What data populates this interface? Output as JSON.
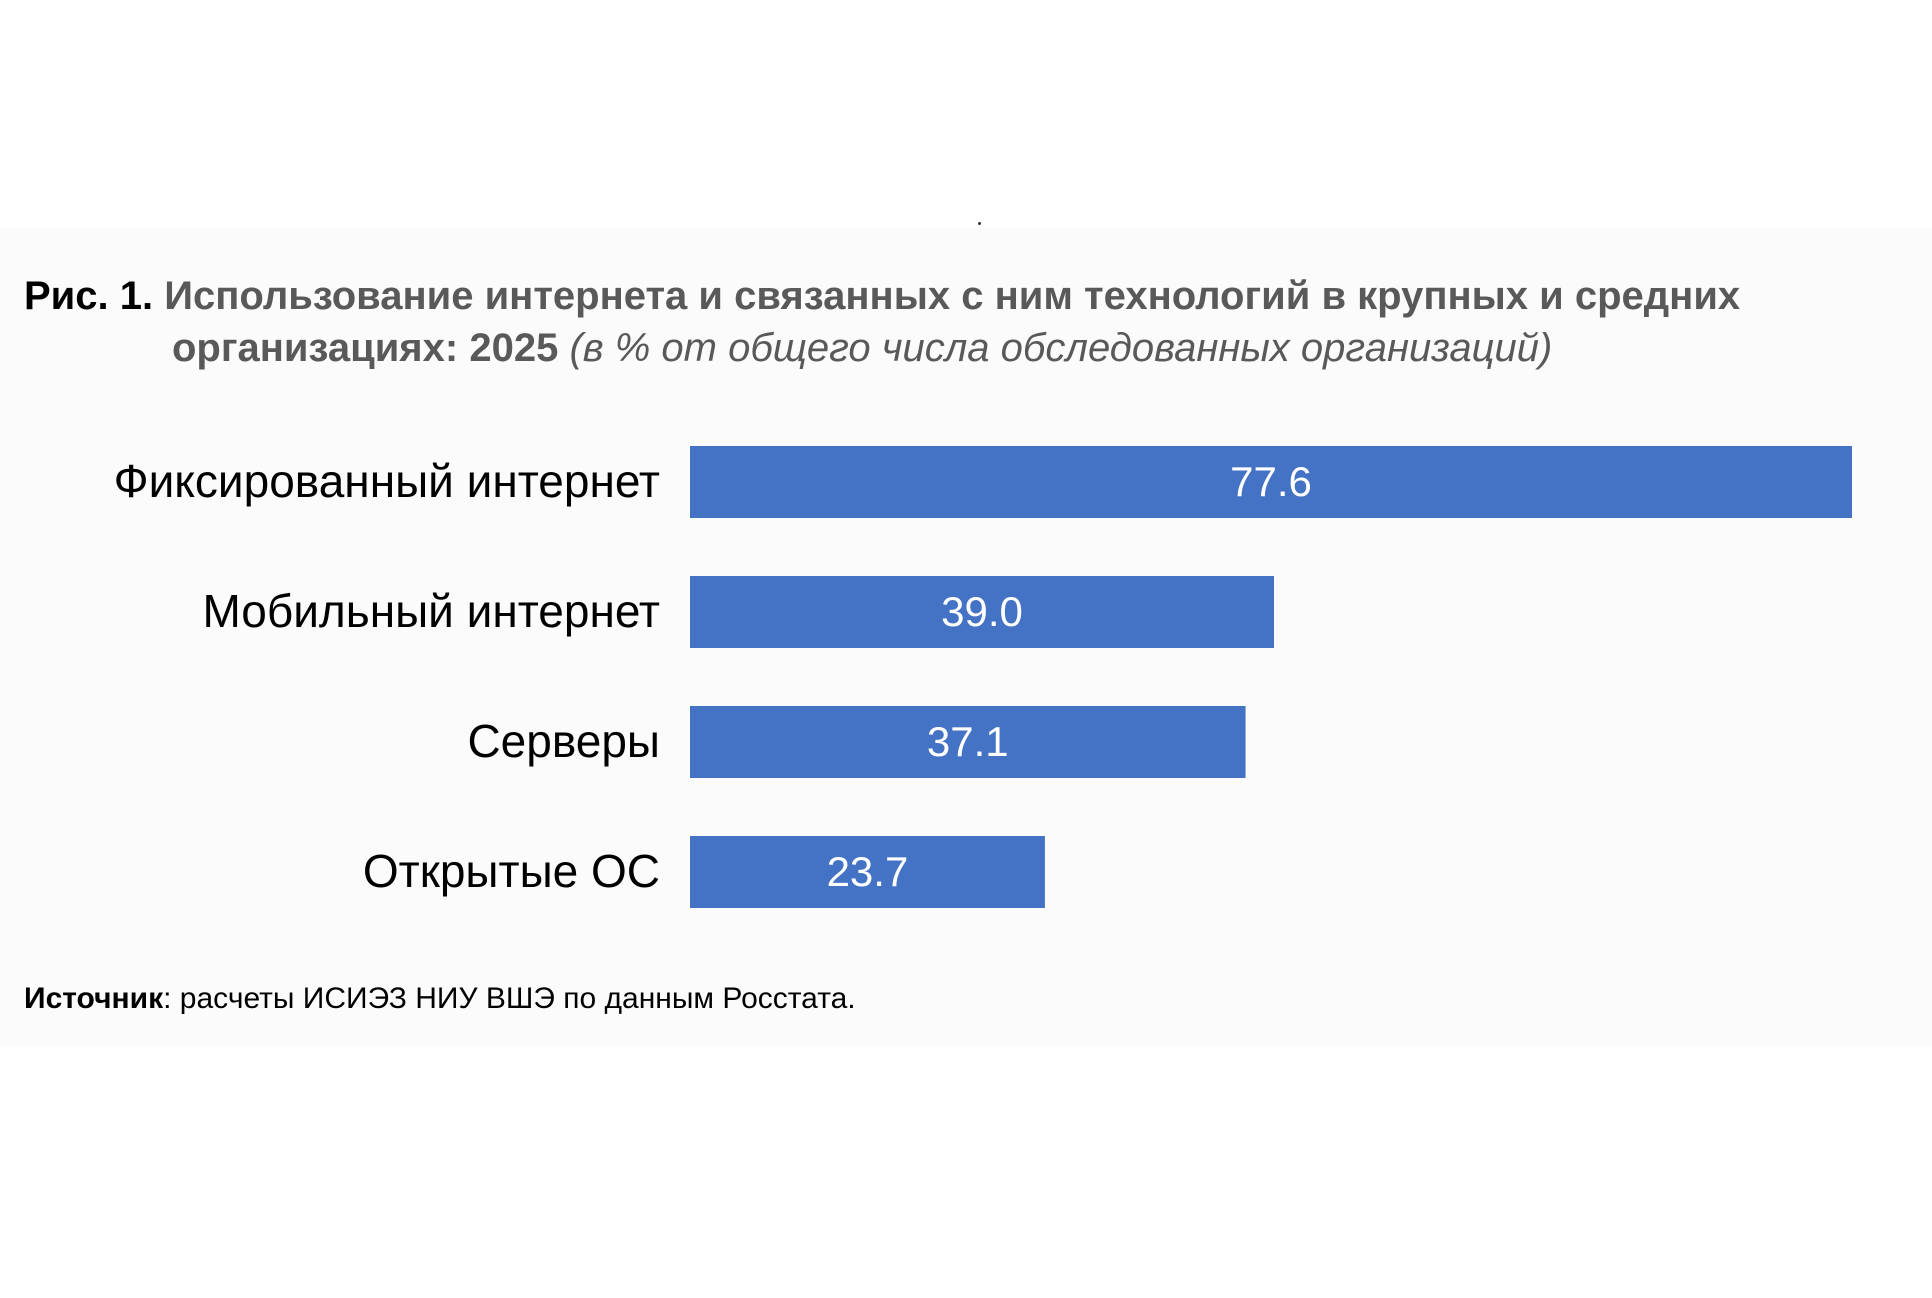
{
  "figure": {
    "number": "Рис. 1.",
    "title_line1": "Использование интернета и связанных с ним технологий в крупных и средних",
    "title_line2": "организациях: 2025",
    "subtitle": "(в % от общего числа обследованных организаций)"
  },
  "source": {
    "label": "Источник",
    "text": ": расчеты ИСИЭЗ НИУ ВШЭ по данным Росстата."
  },
  "colors": {
    "bar": "#4472c4",
    "bar_label": "#ffffff",
    "category_label": "#000000"
  },
  "chart_data": {
    "type": "bar",
    "orientation": "horizontal",
    "categories": [
      "Фиксированный интернет",
      "Мобильный интернет",
      "Серверы",
      "Открытые ОС"
    ],
    "values": [
      77.6,
      39.0,
      37.1,
      23.7
    ],
    "value_labels": [
      "77.6",
      "39.0",
      "37.1",
      "23.7"
    ],
    "xlim": [
      0,
      80
    ],
    "grid": false,
    "legend": "none"
  }
}
